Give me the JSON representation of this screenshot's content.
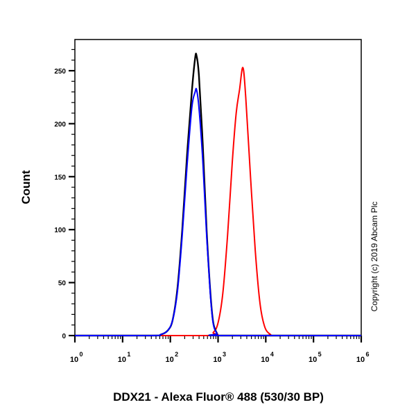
{
  "chart_data": {
    "type": "line",
    "title": "",
    "xlabel": "DDX21 - Alexa Fluor® 488 (530/30 BP)",
    "ylabel": "Count",
    "xscale": "log",
    "xlim": [
      1,
      1000000
    ],
    "ylim": [
      0,
      280
    ],
    "x_ticks": [
      {
        "base": "10",
        "exp": "0",
        "log": 0
      },
      {
        "base": "10",
        "exp": "1",
        "log": 1
      },
      {
        "base": "10",
        "exp": "2",
        "log": 2
      },
      {
        "base": "10",
        "exp": "3",
        "log": 3
      },
      {
        "base": "10",
        "exp": "4",
        "log": 4
      },
      {
        "base": "10",
        "exp": "5",
        "log": 5
      },
      {
        "base": "10",
        "exp": "6",
        "log": 6
      }
    ],
    "y_ticks": [
      0,
      50,
      100,
      150,
      200,
      250
    ],
    "grid": false,
    "legend": null,
    "annotation": "Copyright (c) 2019 Abcam Plc",
    "series": [
      {
        "name": "black",
        "color": "#000000",
        "points_log10x_count": [
          [
            0,
            0
          ],
          [
            1.6,
            0
          ],
          [
            1.8,
            1
          ],
          [
            1.95,
            5
          ],
          [
            2.05,
            15
          ],
          [
            2.15,
            45
          ],
          [
            2.25,
            100
          ],
          [
            2.35,
            170
          ],
          [
            2.45,
            230
          ],
          [
            2.52,
            262
          ],
          [
            2.55,
            264
          ],
          [
            2.6,
            245
          ],
          [
            2.68,
            180
          ],
          [
            2.76,
            100
          ],
          [
            2.84,
            40
          ],
          [
            2.9,
            12
          ],
          [
            2.98,
            2
          ],
          [
            3.05,
            0
          ],
          [
            6,
            0
          ]
        ]
      },
      {
        "name": "blue",
        "color": "#0000ff",
        "points_log10x_count": [
          [
            0,
            0
          ],
          [
            1.6,
            0
          ],
          [
            1.8,
            1
          ],
          [
            1.95,
            5
          ],
          [
            2.05,
            15
          ],
          [
            2.15,
            42
          ],
          [
            2.25,
            95
          ],
          [
            2.35,
            160
          ],
          [
            2.45,
            215
          ],
          [
            2.52,
            230
          ],
          [
            2.55,
            232
          ],
          [
            2.6,
            215
          ],
          [
            2.68,
            165
          ],
          [
            2.76,
            95
          ],
          [
            2.84,
            38
          ],
          [
            2.9,
            11
          ],
          [
            2.98,
            2
          ],
          [
            3.05,
            0
          ],
          [
            6,
            0
          ]
        ]
      },
      {
        "name": "red",
        "color": "#ff0000",
        "points_log10x_count": [
          [
            0,
            0
          ],
          [
            2.75,
            0
          ],
          [
            2.9,
            3
          ],
          [
            3.0,
            12
          ],
          [
            3.1,
            40
          ],
          [
            3.2,
            95
          ],
          [
            3.3,
            165
          ],
          [
            3.38,
            210
          ],
          [
            3.45,
            232
          ],
          [
            3.52,
            253
          ],
          [
            3.58,
            225
          ],
          [
            3.68,
            150
          ],
          [
            3.78,
            80
          ],
          [
            3.88,
            30
          ],
          [
            3.98,
            8
          ],
          [
            4.1,
            1
          ],
          [
            4.2,
            0
          ],
          [
            6,
            0
          ]
        ]
      }
    ]
  },
  "labels": {
    "ylabel": "Count",
    "xlabel": "DDX21 - Alexa Fluor® 488 (530/30 BP)",
    "copyright": "Copyright (c) 2019 Abcam Plc"
  }
}
